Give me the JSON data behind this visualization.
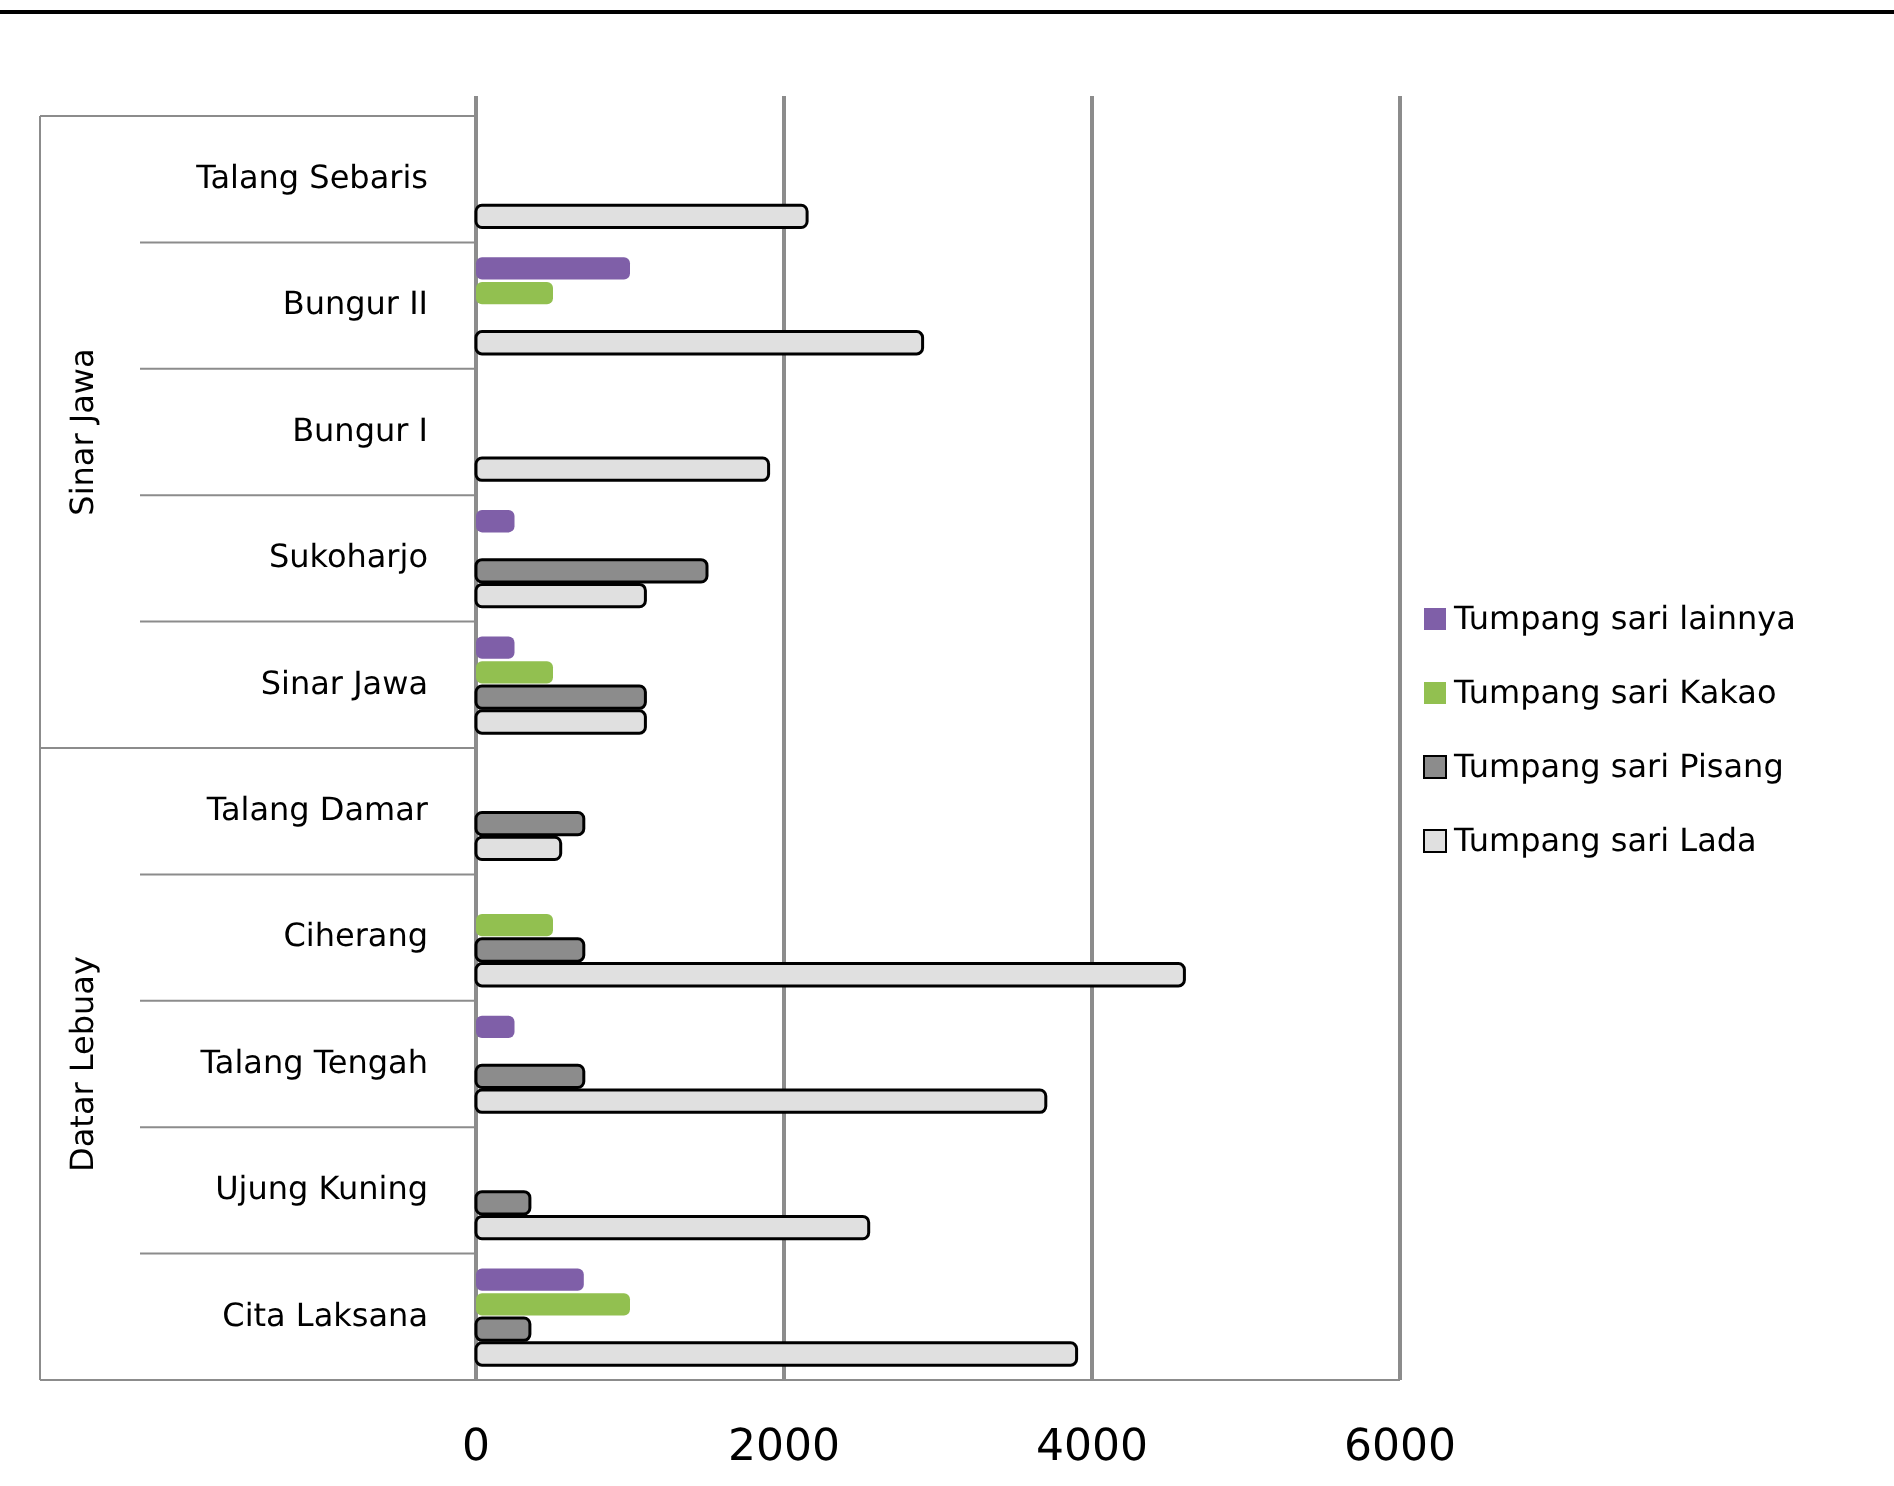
{
  "chart_data": {
    "type": "bar",
    "orientation": "horizontal",
    "categories": [
      "Talang Sebaris",
      "Bungur II",
      "Bungur I",
      "Sukoharjo",
      "Sinar Jawa",
      "Talang Damar",
      "Ciherang",
      "Talang Tengah",
      "Ujung Kuning",
      "Cita Laksana"
    ],
    "series": [
      {
        "name": "Tumpang sari lainnya",
        "color": "#7f5fa8",
        "values": [
          null,
          1000,
          null,
          250,
          250,
          null,
          null,
          250,
          null,
          700
        ]
      },
      {
        "name": "Tumpang sari Kakao",
        "color": "#92c050",
        "values": [
          null,
          500,
          null,
          null,
          500,
          null,
          500,
          null,
          null,
          1000
        ]
      },
      {
        "name": "Tumpang sari Pisang",
        "color": "#8c8c8c",
        "values": [
          null,
          null,
          null,
          1500,
          1100,
          700,
          700,
          700,
          350,
          350
        ]
      },
      {
        "name": "Tumpang sari Lada",
        "color": "#e0e0e0",
        "values": [
          2150,
          2900,
          1900,
          1100,
          1100,
          550,
          4600,
          3700,
          2550,
          3900
        ]
      }
    ],
    "annotations": [
      "Sinar Jawa",
      "Datar Lebuay"
    ],
    "xlim": [
      0,
      6000
    ],
    "xticks": [
      0,
      2000,
      4000,
      6000
    ],
    "grid": "x",
    "legend": "right"
  }
}
